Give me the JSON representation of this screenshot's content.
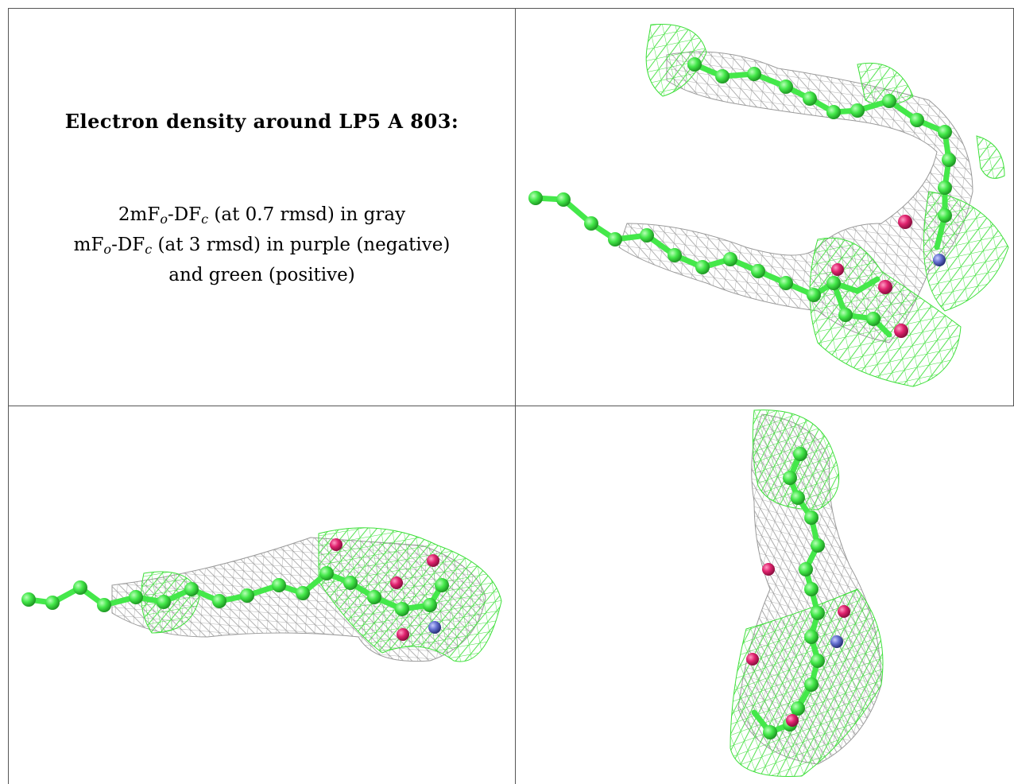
{
  "caption": {
    "title": "Electron density around LP5 A 803:",
    "line1": {
      "prefix": "2mF",
      "sub1": "o",
      "mid": "-DF",
      "sub2": "c",
      "suffix": " (at 0.7 rmsd) in gray"
    },
    "line2": {
      "prefix": "mF",
      "sub1": "o",
      "mid": "-DF",
      "sub2": "c",
      "suffix": " (at 3 rmsd) in purple (negative)"
    },
    "line3": "and green (positive)"
  },
  "colors": {
    "carbon": "#44e84a",
    "oxygen": "#e0236e",
    "nitrogen": "#6470d0",
    "mesh_gray": "#9a9a9a",
    "mesh_green": "#3ee03a",
    "border": "#555555"
  },
  "panels": [
    {
      "view": "top-right",
      "molecule": "LP5"
    },
    {
      "view": "bottom-left",
      "molecule": "LP5"
    },
    {
      "view": "bottom-right",
      "molecule": "LP5"
    }
  ]
}
